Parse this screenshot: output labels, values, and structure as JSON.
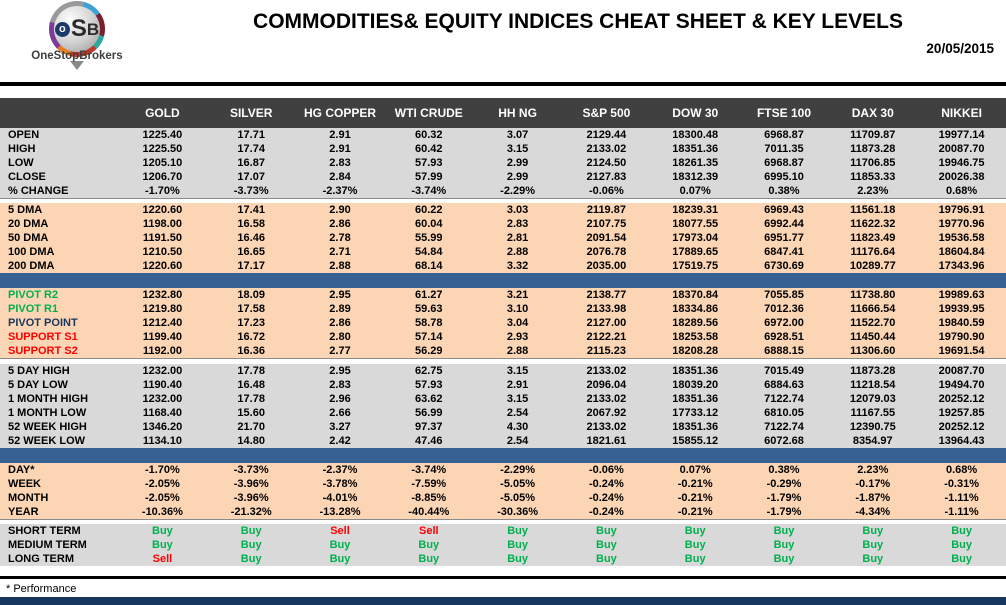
{
  "header": {
    "logo": {
      "monogram_o": "o",
      "monogram_s": "S",
      "monogram_b": "B",
      "brand": "OneStopBrokers"
    },
    "title": "COMMODITIES& EQUITY INDICES CHEAT SHEET & KEY LEVELS",
    "date": "20/05/2015"
  },
  "colors": {
    "buy": "#00b050",
    "sell": "#ff0000",
    "header_bg": "#404040",
    "peach": "#fcd5b4",
    "gray": "#d9d9d9",
    "navy_divider": "#376092",
    "pivot_r": "#00b050",
    "pivot_point": "#17375e",
    "support": "#ff0000"
  },
  "table": {
    "columns": [
      "GOLD",
      "SILVER",
      "HG COPPER",
      "WTI CRUDE",
      "HH NG",
      "S&P 500",
      "DOW 30",
      "FTSE 100",
      "DAX 30",
      "NIKKEI"
    ],
    "sections": [
      {
        "id": "ohlc",
        "theme": "gray",
        "divider_after": "gap-4",
        "bordered": true,
        "rows": [
          {
            "label": "OPEN",
            "values": [
              "1225.40",
              "17.71",
              "2.91",
              "60.32",
              "3.07",
              "2129.44",
              "18300.48",
              "6968.87",
              "11709.87",
              "19977.14"
            ]
          },
          {
            "label": "HIGH",
            "values": [
              "1225.50",
              "17.74",
              "2.91",
              "60.42",
              "3.15",
              "2133.02",
              "18351.36",
              "7011.35",
              "11873.28",
              "20087.70"
            ]
          },
          {
            "label": "LOW",
            "values": [
              "1205.10",
              "16.87",
              "2.83",
              "57.93",
              "2.99",
              "2124.50",
              "18261.35",
              "6968.87",
              "11706.85",
              "19946.75"
            ]
          },
          {
            "label": "CLOSE",
            "values": [
              "1206.70",
              "17.07",
              "2.84",
              "57.99",
              "2.99",
              "2127.83",
              "18312.39",
              "6995.10",
              "11853.33",
              "20026.38"
            ]
          },
          {
            "label": "% CHANGE",
            "values": [
              "-1.70%",
              "-3.73%",
              "-2.37%",
              "-3.74%",
              "-2.29%",
              "-0.06%",
              "0.07%",
              "0.38%",
              "2.23%",
              "0.68%"
            ]
          }
        ]
      },
      {
        "id": "dma",
        "theme": "peach",
        "divider_after": "navy",
        "rows": [
          {
            "label": "5 DMA",
            "values": [
              "1220.60",
              "17.41",
              "2.90",
              "60.22",
              "3.03",
              "2119.87",
              "18239.31",
              "6969.43",
              "11561.18",
              "19796.91"
            ]
          },
          {
            "label": "20 DMA",
            "values": [
              "1198.00",
              "16.58",
              "2.86",
              "60.04",
              "2.83",
              "2107.75",
              "18077.55",
              "6992.44",
              "11622.32",
              "19770.96"
            ]
          },
          {
            "label": "50 DMA",
            "values": [
              "1191.50",
              "16.46",
              "2.78",
              "55.99",
              "2.81",
              "2091.54",
              "17973.04",
              "6951.77",
              "11823.49",
              "19536.58"
            ]
          },
          {
            "label": "100 DMA",
            "values": [
              "1210.50",
              "16.65",
              "2.71",
              "54.84",
              "2.88",
              "2076.78",
              "17889.65",
              "6847.41",
              "11176.64",
              "18604.84"
            ]
          },
          {
            "label": "200 DMA",
            "values": [
              "1220.60",
              "17.17",
              "2.88",
              "68.14",
              "3.32",
              "2035.00",
              "17519.75",
              "6730.69",
              "10289.77",
              "17343.96"
            ]
          }
        ]
      },
      {
        "id": "pivots",
        "theme": "peach",
        "divider_after": "gap-5",
        "bordered": true,
        "rows": [
          {
            "label": "PIVOT R2",
            "label_color": "#00b050",
            "values": [
              "1232.80",
              "18.09",
              "2.95",
              "61.27",
              "3.21",
              "2138.77",
              "18370.84",
              "7055.85",
              "11738.80",
              "19989.63"
            ]
          },
          {
            "label": "PIVOT R1",
            "label_color": "#00b050",
            "values": [
              "1219.80",
              "17.58",
              "2.89",
              "59.63",
              "3.10",
              "2133.98",
              "18334.86",
              "7012.36",
              "11666.54",
              "19939.95"
            ]
          },
          {
            "label": "PIVOT POINT",
            "label_color": "#17375e",
            "values": [
              "1212.40",
              "17.23",
              "2.86",
              "58.78",
              "3.04",
              "2127.00",
              "18289.56",
              "6972.00",
              "11522.70",
              "19840.59"
            ]
          },
          {
            "label": "SUPPORT S1",
            "label_color": "#ff0000",
            "values": [
              "1199.40",
              "16.72",
              "2.80",
              "57.14",
              "2.93",
              "2122.21",
              "18253.58",
              "6928.51",
              "11450.44",
              "19790.90"
            ]
          },
          {
            "label": "SUPPORT S2",
            "label_color": "#ff0000",
            "values": [
              "1192.00",
              "16.36",
              "2.77",
              "56.29",
              "2.88",
              "2115.23",
              "18208.28",
              "6888.15",
              "11306.60",
              "19691.54"
            ]
          }
        ]
      },
      {
        "id": "ranges",
        "theme": "gray",
        "divider_after": "navy",
        "rows": [
          {
            "label": "5 DAY HIGH",
            "values": [
              "1232.00",
              "17.78",
              "2.95",
              "62.75",
              "3.15",
              "2133.02",
              "18351.36",
              "7015.49",
              "11873.28",
              "20087.70"
            ]
          },
          {
            "label": "5 DAY LOW",
            "values": [
              "1190.40",
              "16.48",
              "2.83",
              "57.93",
              "2.91",
              "2096.04",
              "18039.20",
              "6884.63",
              "11218.54",
              "19494.70"
            ]
          },
          {
            "label": "1 MONTH HIGH",
            "values": [
              "1232.00",
              "17.78",
              "2.96",
              "63.62",
              "3.15",
              "2133.02",
              "18351.36",
              "7122.74",
              "12079.03",
              "20252.12"
            ]
          },
          {
            "label": "1 MONTH LOW",
            "values": [
              "1168.40",
              "15.60",
              "2.66",
              "56.99",
              "2.54",
              "2067.92",
              "17733.12",
              "6810.05",
              "11167.55",
              "19257.85"
            ]
          },
          {
            "label": "52 WEEK HIGH",
            "values": [
              "1346.20",
              "21.70",
              "3.27",
              "97.37",
              "4.30",
              "2133.02",
              "18351.36",
              "7122.74",
              "12390.75",
              "20252.12"
            ]
          },
          {
            "label": "52 WEEK LOW",
            "values": [
              "1134.10",
              "14.80",
              "2.42",
              "47.46",
              "2.54",
              "1821.61",
              "15855.12",
              "6072.68",
              "8354.97",
              "13964.43"
            ]
          }
        ]
      },
      {
        "id": "performance",
        "theme": "peach",
        "divider_after": "gap-4",
        "bordered": true,
        "rows": [
          {
            "label": "DAY*",
            "values": [
              "-1.70%",
              "-3.73%",
              "-2.37%",
              "-3.74%",
              "-2.29%",
              "-0.06%",
              "0.07%",
              "0.38%",
              "2.23%",
              "0.68%"
            ]
          },
          {
            "label": "WEEK",
            "values": [
              "-2.05%",
              "-3.96%",
              "-3.78%",
              "-7.59%",
              "-5.05%",
              "-0.24%",
              "-0.21%",
              "-0.29%",
              "-0.17%",
              "-0.31%"
            ]
          },
          {
            "label": "MONTH",
            "values": [
              "-2.05%",
              "-3.96%",
              "-4.01%",
              "-8.85%",
              "-5.05%",
              "-0.24%",
              "-0.21%",
              "-1.79%",
              "-1.87%",
              "-1.11%"
            ]
          },
          {
            "label": "YEAR",
            "values": [
              "-10.36%",
              "-21.32%",
              "-13.28%",
              "-40.44%",
              "-30.36%",
              "-0.24%",
              "-0.21%",
              "-1.79%",
              "-4.34%",
              "-1.11%"
            ]
          }
        ]
      },
      {
        "id": "signals",
        "theme": "gray",
        "type": "signal",
        "divider_after": "none",
        "rows": [
          {
            "label": "SHORT TERM",
            "values": [
              "Buy",
              "Buy",
              "Sell",
              "Sell",
              "Buy",
              "Buy",
              "Buy",
              "Buy",
              "Buy",
              "Buy"
            ]
          },
          {
            "label": "MEDIUM TERM",
            "values": [
              "Buy",
              "Buy",
              "Buy",
              "Buy",
              "Buy",
              "Buy",
              "Buy",
              "Buy",
              "Buy",
              "Buy"
            ]
          },
          {
            "label": "LONG TERM",
            "values": [
              "Sell",
              "Buy",
              "Buy",
              "Buy",
              "Buy",
              "Buy",
              "Buy",
              "Buy",
              "Buy",
              "Buy"
            ]
          }
        ]
      }
    ]
  },
  "footer": {
    "note": "* Performance"
  }
}
